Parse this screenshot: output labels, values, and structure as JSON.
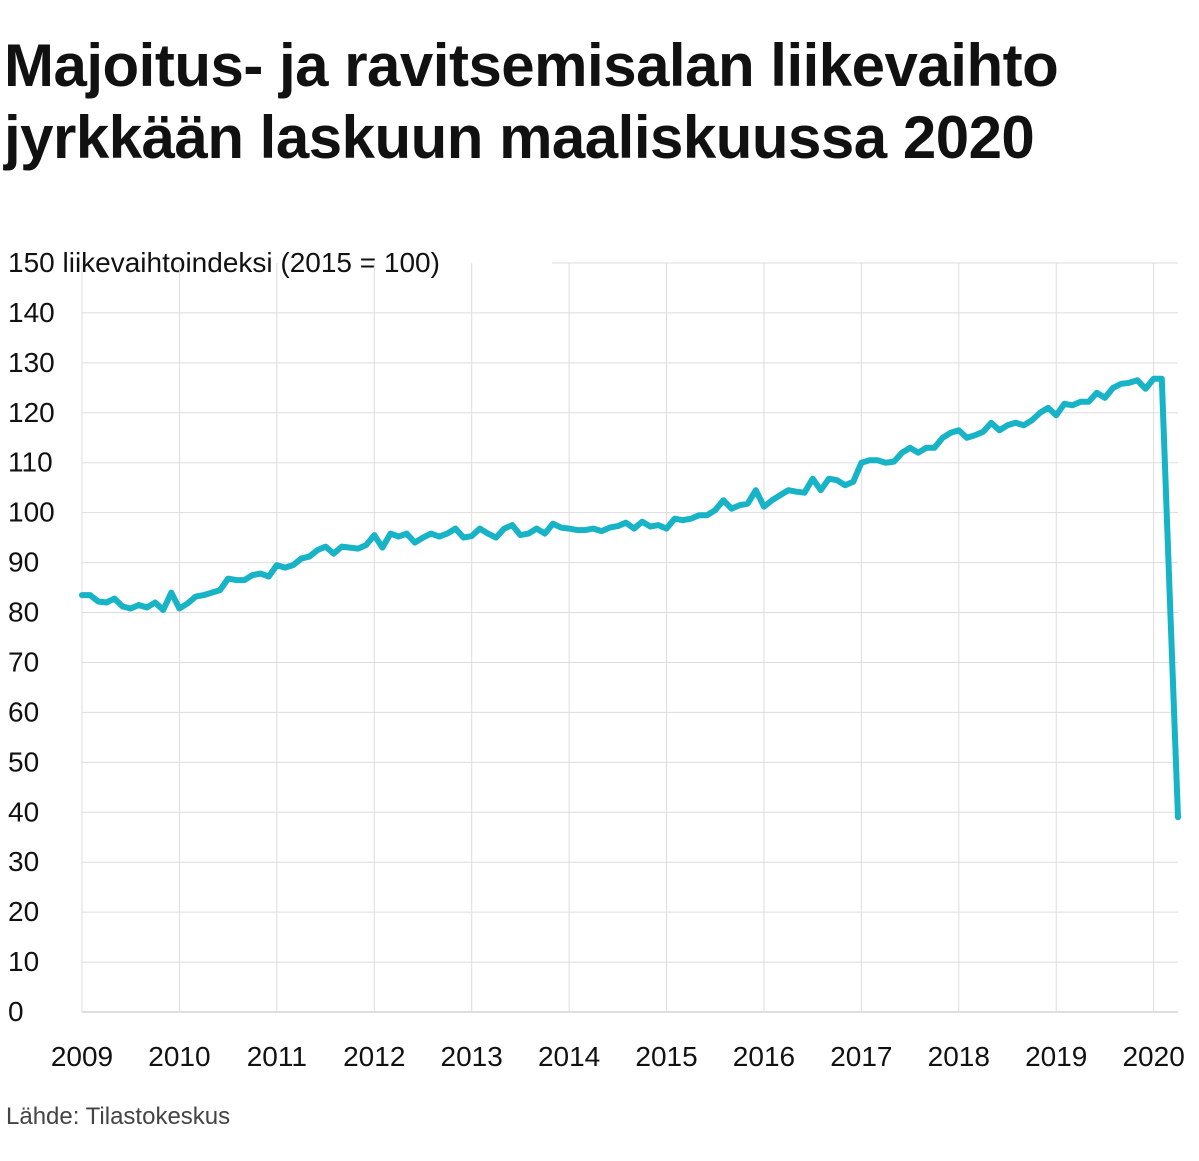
{
  "title_lines": [
    "Majoitus- ja ravitsemisalan liikevaihto",
    "jyrkkään laskuun maaliskuussa 2020"
  ],
  "source": "Lähde: Tilastokeskus",
  "colors": {
    "line": "#17b3c7",
    "grid": "#dddddd",
    "text": "#111111"
  },
  "chart_data": {
    "type": "line",
    "ylabel": "liikevaihtoindeksi (2015 = 100)",
    "ylim": [
      0,
      150
    ],
    "yticks": [
      0,
      10,
      20,
      30,
      40,
      50,
      60,
      70,
      80,
      90,
      100,
      110,
      120,
      130,
      140,
      150
    ],
    "xlim": [
      "2009-01",
      "2020-04"
    ],
    "xtick_labels": [
      "2009",
      "2010",
      "2011",
      "2012",
      "2013",
      "2014",
      "2015",
      "2016",
      "2017",
      "2018",
      "2019",
      "2020"
    ],
    "grid": true,
    "legend": "none",
    "series": [
      {
        "name": "",
        "x_start": "2009-01",
        "frequency": "monthly",
        "values": [
          83.5,
          83.5,
          82.2,
          82.0,
          82.8,
          81.2,
          80.8,
          81.5,
          81.0,
          82.0,
          80.5,
          84.0,
          80.8,
          81.8,
          83.2,
          83.5,
          84.0,
          84.5,
          86.8,
          86.5,
          86.5,
          87.5,
          87.8,
          87.2,
          89.5,
          89.0,
          89.5,
          90.8,
          91.2,
          92.5,
          93.2,
          91.8,
          93.2,
          93.0,
          92.8,
          93.5,
          95.5,
          93.0,
          95.8,
          95.2,
          95.8,
          94.0,
          95.0,
          95.8,
          95.2,
          95.8,
          96.8,
          95.0,
          95.3,
          96.8,
          95.8,
          95.0,
          96.8,
          97.5,
          95.5,
          95.8,
          96.8,
          95.8,
          97.8,
          97.0,
          96.8,
          96.5,
          96.5,
          96.8,
          96.3,
          97.0,
          97.3,
          98.0,
          96.8,
          98.2,
          97.2,
          97.5,
          96.8,
          98.8,
          98.5,
          98.8,
          99.5,
          99.5,
          100.5,
          102.5,
          100.8,
          101.5,
          101.8,
          104.5,
          101.2,
          102.5,
          103.5,
          104.5,
          104.2,
          104.0,
          106.8,
          104.5,
          106.8,
          106.5,
          105.5,
          106.2,
          110.0,
          110.5,
          110.5,
          110.0,
          110.2,
          112.0,
          113.0,
          112.0,
          113.0,
          113.0,
          115.0,
          116.0,
          116.5,
          115.0,
          115.5,
          116.2,
          118.0,
          116.5,
          117.5,
          118.0,
          117.5,
          118.5,
          120.0,
          121.0,
          119.5,
          121.8,
          121.5,
          122.2,
          122.2,
          124.0,
          123.0,
          125.0,
          125.8,
          126.0,
          126.5,
          124.8,
          126.8,
          126.8,
          82.5,
          39.0
        ]
      }
    ]
  }
}
